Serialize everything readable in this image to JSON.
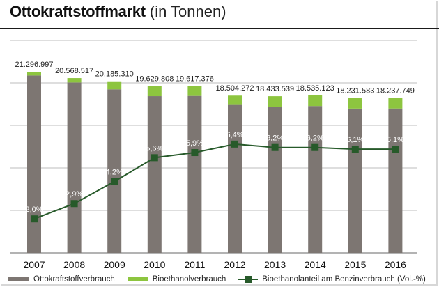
{
  "title": {
    "bold": "Ottokraftstoffmarkt",
    "light": "(in Tonnen)"
  },
  "colors": {
    "fossil": "#7d7672",
    "bio": "#8dc53f",
    "line": "#275a2a",
    "grid": "#bdbdbd",
    "text": "#222222"
  },
  "legend": {
    "fossil_label": "Ottokraftstoffverbrauch",
    "bio_label": "Bioethanolverbrauch",
    "share_label": "Bioethanolanteil am Benzinverbrauch (Vol.-%)"
  },
  "chart_data": {
    "type": "bar",
    "categories": [
      "2007",
      "2008",
      "2009",
      "2010",
      "2011",
      "2012",
      "2013",
      "2014",
      "2015",
      "2016"
    ],
    "totals": [
      "21.296.997",
      "20.568.517",
      "20.185.310",
      "19.629.808",
      "19.617.376",
      "18.504.272",
      "18.433.539",
      "18.535.123",
      "18.231.583",
      "18.237.749"
    ],
    "series": [
      {
        "name": "Ottokraftstoffverbrauch",
        "values": [
          20870000,
          20050000,
          19240000,
          18440000,
          18470000,
          17410000,
          17190000,
          17280000,
          16980000,
          16990000
        ]
      },
      {
        "name": "Bioethanolverbrauch",
        "values": [
          426997,
          518517,
          945310,
          1189808,
          1147376,
          1094272,
          1243539,
          1255123,
          1251583,
          1247749
        ]
      }
    ],
    "share": {
      "name": "Bioethanolanteil am Benzinverbrauch (Vol.-%)",
      "values": [
        2.0,
        2.9,
        4.2,
        5.6,
        5.9,
        6.4,
        6.2,
        6.2,
        6.1,
        6.1
      ],
      "labels": [
        "2,0%",
        "2,9%",
        "4,2%",
        "5,6%",
        "5,9%",
        "6,4%",
        "6,2%",
        "6,2%",
        "6,1%",
        "6,1%"
      ],
      "ylim": [
        0,
        12.5
      ]
    },
    "ylim": [
      0,
      25000000
    ],
    "gridlines": [
      5000000,
      10000000,
      15000000,
      20000000,
      25000000
    ],
    "grid": true,
    "legend_position": "bottom"
  }
}
